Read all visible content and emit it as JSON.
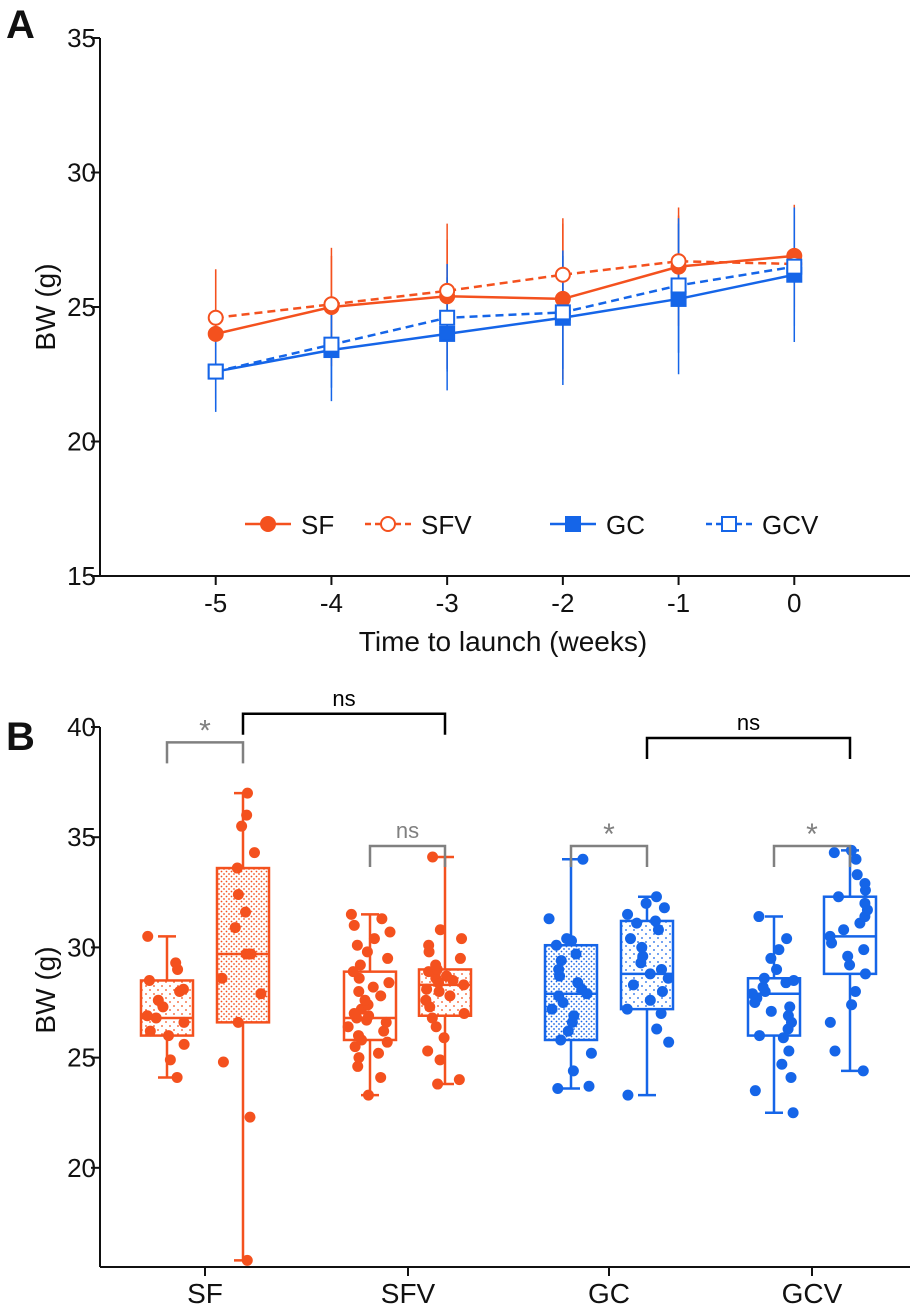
{
  "chart_data": [
    {
      "panel": "A",
      "type": "line",
      "title": "",
      "xlabel": "Time to launch (weeks)",
      "ylabel": "BW (g)",
      "x": [
        -5,
        -4,
        -3,
        -2,
        -1,
        0
      ],
      "xlim": [
        -6,
        1
      ],
      "ylim": [
        15,
        35
      ],
      "yticks": [
        15,
        20,
        25,
        30,
        35
      ],
      "legend_position": "bottom-inside",
      "series": [
        {
          "name": "SF",
          "color": "#f4511e",
          "marker": "filled-circle",
          "line": "solid",
          "values": [
            24.0,
            25.0,
            25.4,
            25.3,
            26.5,
            26.9
          ],
          "err": [
            2.4,
            2.2,
            2.7,
            3.0,
            2.2,
            1.9
          ]
        },
        {
          "name": "SFV",
          "color": "#f4511e",
          "marker": "open-circle",
          "line": "dashed",
          "values": [
            24.6,
            25.1,
            25.6,
            26.2,
            26.7,
            26.6
          ],
          "err": [
            1.8,
            1.8,
            1.9,
            1.9,
            1.7,
            1.8
          ]
        },
        {
          "name": "GC",
          "color": "#1565e8",
          "marker": "filled-square",
          "line": "solid",
          "values": [
            22.6,
            23.4,
            24.0,
            24.6,
            25.3,
            26.2
          ],
          "err": [
            1.5,
            1.9,
            2.1,
            2.5,
            2.8,
            2.5
          ]
        },
        {
          "name": "GCV",
          "color": "#1565e8",
          "marker": "open-square",
          "line": "dashed",
          "values": [
            22.6,
            23.6,
            24.6,
            24.8,
            25.8,
            26.5
          ],
          "err": [
            1.4,
            1.6,
            2.0,
            2.1,
            2.5,
            2.2
          ]
        }
      ]
    },
    {
      "panel": "B",
      "type": "box",
      "title": "",
      "xlabel": "",
      "ylabel": "BW (g)",
      "categories": [
        "SF",
        "SFV",
        "GC",
        "GCV"
      ],
      "ylim": [
        15.5,
        40
      ],
      "yticks": [
        20,
        25,
        30,
        35,
        40
      ],
      "boxes": [
        {
          "group": "SF",
          "color": "#f4511e",
          "pattern": "sparse",
          "min": 24.1,
          "q1": 26.0,
          "median": 26.8,
          "q3": 28.5,
          "max": 30.5,
          "points": [
            24.1,
            24.9,
            25.6,
            26.0,
            26.2,
            26.6,
            26.8,
            26.9,
            27.3,
            27.6,
            28.0,
            28.1,
            28.5,
            29.0,
            29.3,
            30.5
          ]
        },
        {
          "group": "SF",
          "color": "#f4511e",
          "pattern": "dense",
          "min": 15.8,
          "q1": 26.6,
          "median": 29.7,
          "q3": 33.6,
          "max": 37.0,
          "points": [
            15.8,
            22.3,
            24.8,
            26.6,
            27.9,
            28.6,
            29.7,
            29.7,
            30.9,
            31.6,
            32.4,
            33.6,
            34.3,
            35.5,
            36.0,
            37.0
          ]
        },
        {
          "group": "SFV",
          "color": "#f4511e",
          "pattern": "none",
          "min": 23.3,
          "q1": 25.8,
          "median": 26.8,
          "q3": 28.9,
          "max": 31.5,
          "points": [
            23.3,
            24.1,
            24.6,
            25.0,
            25.2,
            25.5,
            25.7,
            25.8,
            26.0,
            26.2,
            26.4,
            26.6,
            26.7,
            26.8,
            26.9,
            27.0,
            27.2,
            27.4,
            27.6,
            27.8,
            28.0,
            28.2,
            28.4,
            28.6,
            28.9,
            29.2,
            29.5,
            29.8,
            30.1,
            30.4,
            30.7,
            31.0,
            31.3,
            31.5
          ]
        },
        {
          "group": "SFV",
          "color": "#f4511e",
          "pattern": "sparse",
          "min": 23.8,
          "q1": 26.9,
          "median": 28.3,
          "q3": 29.0,
          "max": 34.1,
          "points": [
            23.8,
            24.0,
            24.9,
            25.3,
            25.9,
            26.4,
            26.8,
            27.0,
            27.3,
            27.6,
            27.8,
            28.0,
            28.1,
            28.3,
            28.4,
            28.5,
            28.6,
            28.7,
            28.8,
            28.9,
            29.0,
            29.2,
            29.5,
            29.8,
            30.1,
            30.4,
            30.8,
            34.1
          ]
        },
        {
          "group": "GC",
          "color": "#1565e8",
          "pattern": "dense",
          "min": 23.6,
          "q1": 25.8,
          "median": 27.9,
          "q3": 30.1,
          "max": 34.0,
          "points": [
            23.6,
            23.7,
            24.4,
            25.2,
            25.8,
            26.2,
            26.6,
            26.9,
            27.2,
            27.5,
            27.8,
            27.9,
            28.1,
            28.4,
            28.7,
            29.0,
            29.4,
            29.7,
            30.1,
            30.3,
            30.4,
            31.3,
            34.0
          ]
        },
        {
          "group": "GC",
          "color": "#1565e8",
          "pattern": "sparse",
          "min": 23.3,
          "q1": 27.2,
          "median": 28.8,
          "q3": 31.2,
          "max": 32.3,
          "points": [
            23.3,
            25.7,
            26.3,
            27.0,
            27.2,
            27.6,
            28.0,
            28.3,
            28.6,
            28.8,
            29.0,
            29.3,
            29.6,
            30.0,
            30.4,
            30.8,
            31.1,
            31.2,
            31.5,
            31.8,
            32.0,
            32.3
          ]
        },
        {
          "group": "GCV",
          "color": "#1565e8",
          "pattern": "none",
          "min": 22.5,
          "q1": 26.0,
          "median": 27.9,
          "q3": 28.6,
          "max": 31.4,
          "points": [
            22.5,
            23.5,
            24.1,
            24.7,
            25.3,
            25.9,
            26.0,
            26.3,
            26.6,
            26.9,
            27.1,
            27.3,
            27.5,
            27.7,
            27.9,
            28.0,
            28.2,
            28.4,
            28.5,
            28.6,
            29.0,
            29.5,
            29.9,
            30.4,
            31.4
          ]
        },
        {
          "group": "GCV",
          "color": "#1565e8",
          "pattern": "none",
          "min": 24.4,
          "q1": 28.8,
          "median": 30.5,
          "q3": 32.3,
          "max": 34.4,
          "points": [
            24.4,
            25.3,
            26.6,
            27.4,
            28.0,
            28.8,
            29.2,
            29.6,
            29.9,
            30.2,
            30.5,
            30.8,
            31.1,
            31.4,
            31.7,
            32.0,
            32.3,
            32.6,
            32.9,
            33.3,
            34.0,
            34.3,
            34.4
          ]
        }
      ],
      "annotations": [
        {
          "label": "*",
          "color": "#808080",
          "from_box": 0,
          "to_box": 1,
          "level": 39.3
        },
        {
          "label": "ns",
          "color": "#000000",
          "from_box": 1,
          "to_box": 3,
          "level": 40.6
        },
        {
          "label": "ns",
          "color": "#808080",
          "from_box": 2,
          "to_box": 3,
          "level": 34.6
        },
        {
          "label": "*",
          "color": "#808080",
          "from_box": 4,
          "to_box": 5,
          "level": 34.6
        },
        {
          "label": "ns",
          "color": "#000000",
          "from_box": 5,
          "to_box": 7,
          "level": 39.5
        },
        {
          "label": "*",
          "color": "#808080",
          "from_box": 6,
          "to_box": 7,
          "level": 34.6
        }
      ]
    }
  ],
  "panel_labels": [
    "A",
    "B"
  ]
}
